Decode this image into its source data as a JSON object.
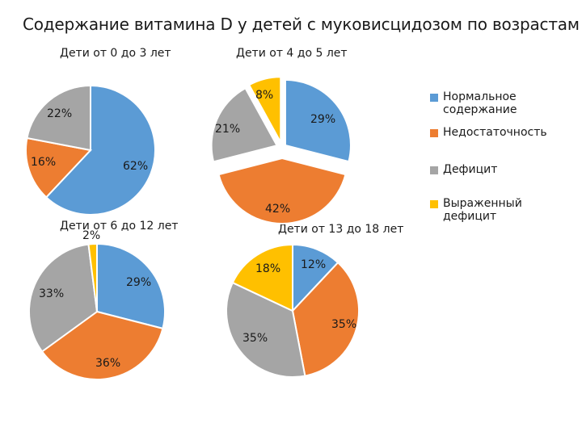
{
  "colors": {
    "normal": "#5B9BD5",
    "insufficient": "#ED7D31",
    "deficit": "#A5A5A5",
    "severe": "#FFC000"
  },
  "title": "Содержание витамина D у детей с муковисцидозом по возрастам",
  "legend": [
    {
      "key": "normal",
      "label": "Нормальное содержание"
    },
    {
      "key": "insufficient",
      "label": "Недостаточность"
    },
    {
      "key": "deficit",
      "label": "Дефицит"
    },
    {
      "key": "severe",
      "label": "Выраженный дефицит"
    }
  ],
  "chart_data": [
    {
      "type": "pie",
      "title": "Дети от 0 до 3 лет",
      "categories": [
        "Нормальное содержание",
        "Недостаточность",
        "Дефицит"
      ],
      "values": [
        62,
        16,
        22
      ],
      "labels": [
        "62%",
        "16%",
        "22%"
      ]
    },
    {
      "type": "pie",
      "title": "Дети от 4 до 5 лет",
      "categories": [
        "Нормальное содержание",
        "Недостаточность",
        "Дефицит",
        "Выраженный дефицит"
      ],
      "values": [
        29,
        42,
        21,
        8
      ],
      "labels": [
        "29%",
        "42%",
        "21%",
        "8%"
      ]
    },
    {
      "type": "pie",
      "title": "Дети от 6 до 12 лет",
      "categories": [
        "Нормальное содержание",
        "Недостаточность",
        "Дефицит",
        "Выраженный дефицит"
      ],
      "values": [
        29,
        36,
        33,
        2
      ],
      "labels": [
        "29%",
        "36%",
        "33%",
        "2%"
      ]
    },
    {
      "type": "pie",
      "title": "Дети от 13 до 18 лет",
      "categories": [
        "Нормальное содержание",
        "Недостаточность",
        "Дефицит",
        "Выраженный дефицит"
      ],
      "values": [
        12,
        35,
        35,
        18
      ],
      "labels": [
        "12%",
        "35%",
        "35%",
        "18%"
      ]
    }
  ]
}
